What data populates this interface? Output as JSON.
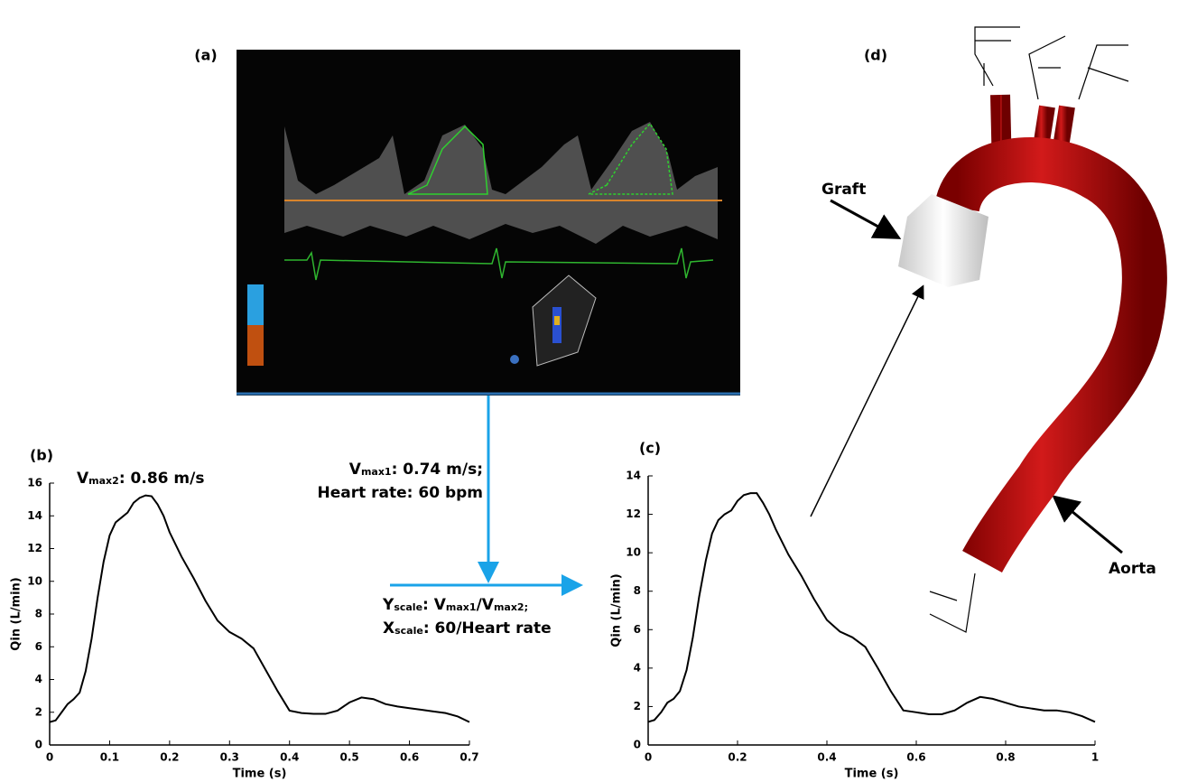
{
  "panel_labels": [
    "(a)",
    "(b)",
    "(c)",
    "(d)"
  ],
  "annotations": [
    {
      "segments": [
        {
          "text": "V"
        },
        {
          "text": "max2",
          "style": "sub"
        },
        {
          "text": ": 0.86 m/s"
        }
      ]
    },
    {
      "segments": [
        {
          "text": "V"
        },
        {
          "text": "max1",
          "style": "sub"
        },
        {
          "text": ": 0.74 m/s;"
        }
      ]
    },
    {
      "segments": [
        {
          "text": "Heart rate: 60 bpm"
        }
      ]
    },
    {
      "segments": [
        {
          "text": "Y"
        },
        {
          "text": "scale",
          "style": "sub"
        },
        {
          "text": ": V"
        },
        {
          "text": "max1",
          "style": "sub"
        },
        {
          "text": "/V"
        },
        {
          "text": "max2;",
          "style": "sub"
        }
      ]
    },
    {
      "segments": [
        {
          "text": "X"
        },
        {
          "text": "scale",
          "style": "sub"
        },
        {
          "text": ": 60/Heart rate"
        }
      ]
    }
  ],
  "labels": {
    "graft": "Graft",
    "aorta": "Aorta"
  },
  "chart_data": [
    {
      "type": "line",
      "xlabel": "Time (s)",
      "ylabel": "Qin (L/min)",
      "x": [
        0,
        0.01,
        0.02,
        0.03,
        0.04,
        0.05,
        0.06,
        0.07,
        0.08,
        0.09,
        0.1,
        0.11,
        0.12,
        0.13,
        0.14,
        0.15,
        0.16,
        0.17,
        0.18,
        0.19,
        0.2,
        0.22,
        0.24,
        0.26,
        0.28,
        0.3,
        0.32,
        0.34,
        0.36,
        0.38,
        0.4,
        0.42,
        0.44,
        0.46,
        0.48,
        0.5,
        0.52,
        0.54,
        0.56,
        0.58,
        0.6,
        0.62,
        0.64,
        0.66,
        0.68,
        0.7
      ],
      "series": [
        {
          "color": "#000000",
          "values": [
            1.4,
            1.5,
            2.0,
            2.5,
            2.8,
            3.2,
            4.5,
            6.5,
            9,
            11.2,
            12.8,
            13.6,
            13.9,
            14.2,
            14.8,
            15.1,
            15.25,
            15.2,
            14.7,
            14,
            13,
            11.5,
            10.2,
            8.8,
            7.6,
            6.9,
            6.5,
            5.9,
            4.6,
            3.3,
            2.1,
            1.95,
            1.9,
            1.9,
            2.1,
            2.6,
            2.9,
            2.8,
            2.5,
            2.35,
            2.25,
            2.15,
            2.05,
            1.95,
            1.75,
            1.4
          ]
        }
      ],
      "xlim": [
        0,
        0.7
      ],
      "ylim": [
        0,
        16
      ],
      "xticks": [
        0,
        0.1,
        0.2,
        0.3,
        0.4,
        0.5,
        0.6,
        0.7
      ],
      "yticks": [
        0,
        2,
        4,
        6,
        8,
        10,
        12,
        14,
        16
      ]
    },
    {
      "type": "line",
      "xlabel": "Time (s)",
      "ylabel": "Qin (L/min)",
      "x": [
        0,
        0.014,
        0.029,
        0.043,
        0.057,
        0.071,
        0.086,
        0.1,
        0.114,
        0.129,
        0.143,
        0.157,
        0.171,
        0.186,
        0.2,
        0.214,
        0.229,
        0.243,
        0.257,
        0.271,
        0.286,
        0.314,
        0.343,
        0.371,
        0.4,
        0.429,
        0.457,
        0.486,
        0.514,
        0.543,
        0.571,
        0.6,
        0.629,
        0.657,
        0.686,
        0.714,
        0.743,
        0.771,
        0.8,
        0.829,
        0.857,
        0.886,
        0.914,
        0.943,
        0.971,
        1
      ],
      "series": [
        {
          "color": "#000000",
          "values": [
            1.2,
            1.3,
            1.7,
            2.2,
            2.4,
            2.8,
            3.9,
            5.6,
            7.7,
            9.6,
            11.0,
            11.7,
            12.0,
            12.2,
            12.7,
            13.0,
            13.1,
            13.1,
            12.6,
            12.0,
            11.2,
            9.9,
            8.8,
            7.6,
            6.5,
            5.9,
            5.6,
            5.1,
            4.0,
            2.8,
            1.8,
            1.7,
            1.6,
            1.6,
            1.8,
            2.2,
            2.5,
            2.4,
            2.2,
            2.0,
            1.9,
            1.8,
            1.8,
            1.7,
            1.5,
            1.2
          ]
        }
      ],
      "xlim": [
        0,
        1
      ],
      "ylim": [
        0,
        14
      ],
      "xticks": [
        0,
        0.2,
        0.4,
        0.6,
        0.8,
        1
      ],
      "yticks": [
        0,
        2,
        4,
        6,
        8,
        10,
        12,
        14
      ]
    }
  ]
}
